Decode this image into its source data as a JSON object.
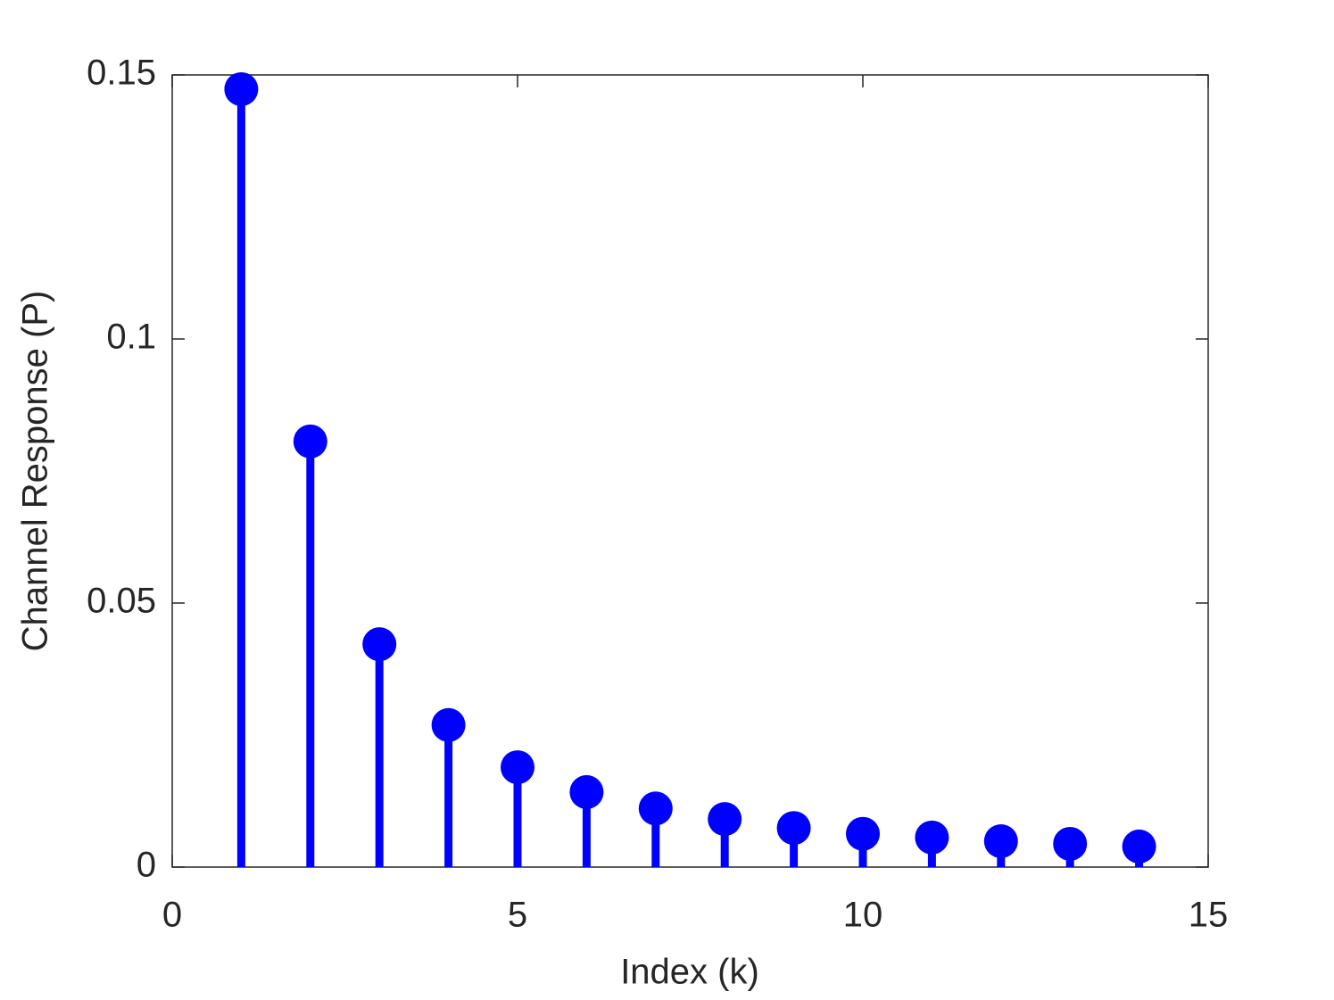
{
  "chart_data": {
    "type": "stem",
    "xlabel": "Index (k)",
    "ylabel": "Channel Response (P)",
    "x": [
      1,
      2,
      3,
      4,
      5,
      6,
      7,
      8,
      9,
      10,
      11,
      12,
      13,
      14
    ],
    "values": [
      0.1473,
      0.0806,
      0.0422,
      0.0269,
      0.0189,
      0.0142,
      0.0111,
      0.0091,
      0.0074,
      0.0063,
      0.0056,
      0.0049,
      0.0044,
      0.0039
    ],
    "color": "#0000ff",
    "xlim": [
      0,
      15
    ],
    "xticks": [
      0,
      5,
      10,
      15
    ],
    "ylim": [
      0,
      0.15
    ],
    "yticks": [
      0,
      0.05,
      0.1,
      0.15
    ],
    "grid": false
  }
}
